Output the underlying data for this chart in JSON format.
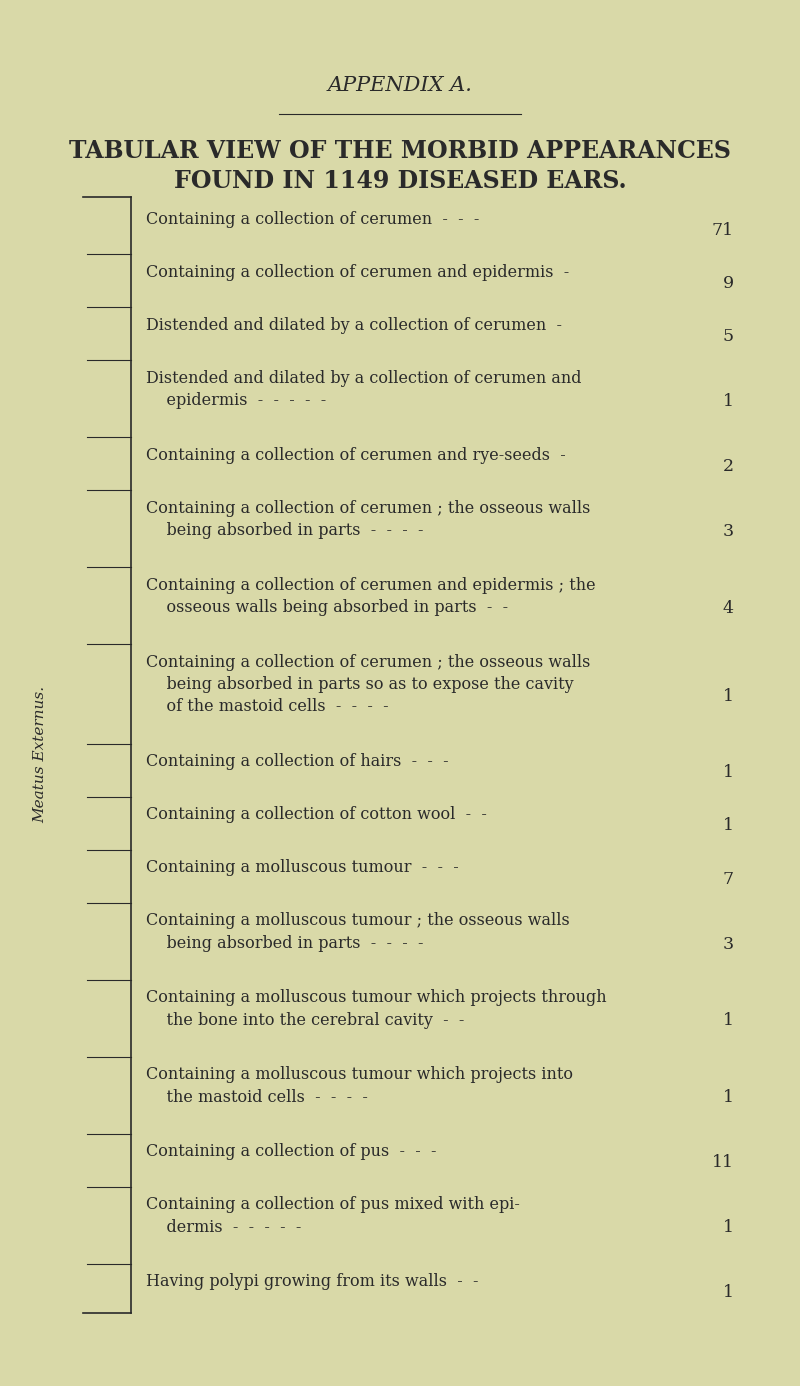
{
  "background_color": "#d9d9a8",
  "title_appendix": "APPENDIX A.",
  "title_main": "TABULAR VIEW OF THE MORBID APPEARANCES",
  "title_sub": "FOUND IN 1149 DISEASED EARS.",
  "side_label": "Meatus Externus.",
  "rows": [
    {
      "text": "Containing a collection of cerumen  -  -  -",
      "value": "71",
      "nlines": 1
    },
    {
      "text": "Containing a collection of cerumen and epidermis  -",
      "value": "9",
      "nlines": 1
    },
    {
      "text": "Distended and dilated by a collection of cerumen  -",
      "value": "5",
      "nlines": 1
    },
    {
      "text": "Distended and dilated by a collection of cerumen and\n    epidermis  -  -  -  -  -",
      "value": "1",
      "nlines": 2
    },
    {
      "text": "Containing a collection of cerumen and rye-seeds  -",
      "value": "2",
      "nlines": 1
    },
    {
      "text": "Containing a collection of cerumen ; the osseous walls\n    being absorbed in parts  -  -  -  -",
      "value": "3",
      "nlines": 2
    },
    {
      "text": "Containing a collection of cerumen and epidermis ; the\n    osseous walls being absorbed in parts  -  -",
      "value": "4",
      "nlines": 2
    },
    {
      "text": "Containing a collection of cerumen ; the osseous walls\n    being absorbed in parts so as to expose the cavity\n    of the mastoid cells  -  -  -  -",
      "value": "1",
      "nlines": 3
    },
    {
      "text": "Containing a collection of hairs  -  -  -",
      "value": "1",
      "nlines": 1
    },
    {
      "text": "Containing a collection of cotton wool  -  -",
      "value": "1",
      "nlines": 1
    },
    {
      "text": "Containing a molluscous tumour  -  -  -",
      "value": "7",
      "nlines": 1
    },
    {
      "text": "Containing a molluscous tumour ; the osseous walls\n    being absorbed in parts  -  -  -  -",
      "value": "3",
      "nlines": 2
    },
    {
      "text": "Containing a molluscous tumour which projects through\n    the bone into the cerebral cavity  -  -",
      "value": "1",
      "nlines": 2
    },
    {
      "text": "Containing a molluscous tumour which projects into\n    the mastoid cells  -  -  -  -",
      "value": "1",
      "nlines": 2
    },
    {
      "text": "Containing a collection of pus  -  -  -",
      "value": "11",
      "nlines": 1
    },
    {
      "text": "Containing a collection of pus mixed with epi-\n    dermis  -  -  -  -  -",
      "value": "1",
      "nlines": 2
    },
    {
      "text": "Having polypi growing from its walls  -  -",
      "value": "1",
      "nlines": 1
    }
  ],
  "text_color": "#2a2a2a",
  "bracket_color": "#2a2a2a",
  "font_size_appendix": 15,
  "font_size_title": 17,
  "font_size_body": 11.5,
  "font_size_side": 11
}
